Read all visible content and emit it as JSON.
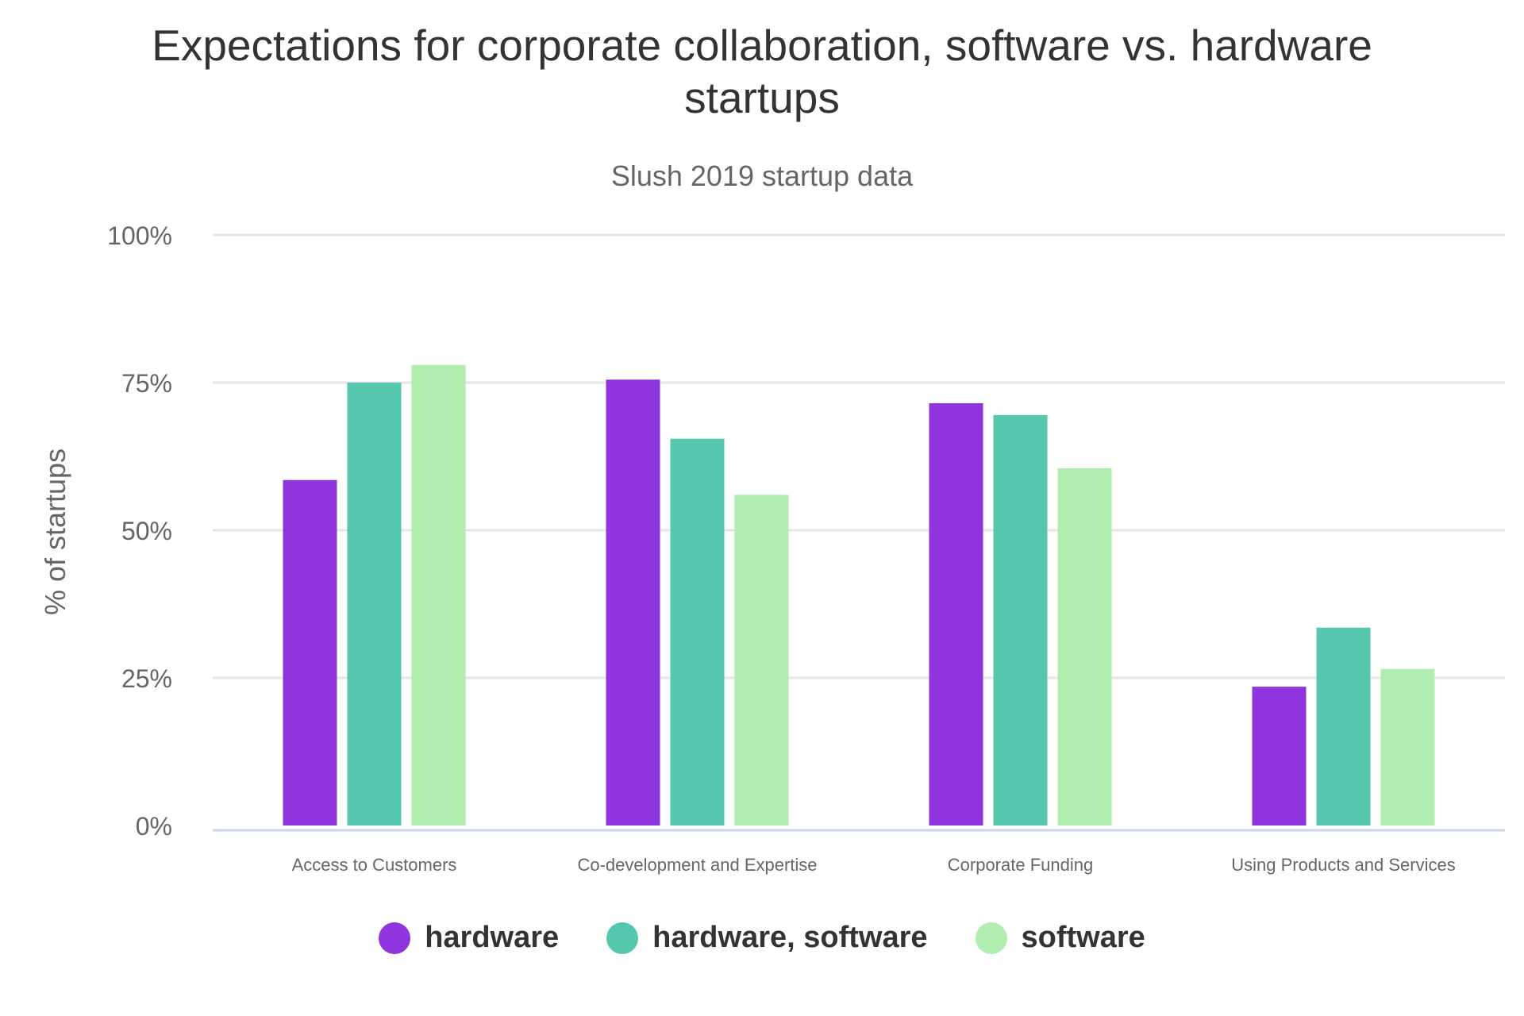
{
  "chart_data": {
    "type": "bar",
    "title": "Expectations for corporate collaboration, software vs. hardware startups",
    "subtitle": "Slush 2019 startup data",
    "ylabel": "% of startups",
    "xlabel": "",
    "ylim": [
      0,
      100
    ],
    "yticks": [
      "0%",
      "25%",
      "50%",
      "75%",
      "100%"
    ],
    "ytick_values": [
      0,
      25,
      50,
      75,
      100
    ],
    "grid": true,
    "legend_position": "bottom",
    "categories": [
      "Access to Customers",
      "Co-development and Expertise",
      "Corporate Funding",
      "Using Products and Services"
    ],
    "series": [
      {
        "name": "hardware",
        "color": "#8e35de",
        "values": [
          58.5,
          75.5,
          71.5,
          23.5
        ]
      },
      {
        "name": "hardware, software",
        "color": "#55c7ad",
        "values": [
          75,
          65.5,
          69.5,
          33.5
        ]
      },
      {
        "name": "software",
        "color": "#b1edaf",
        "values": [
          78,
          56,
          60.5,
          26.5
        ]
      }
    ]
  },
  "colors": {
    "grid": "#e6e6e6",
    "axis": "#ccd6eb",
    "text": "#333333",
    "muted": "#666666"
  }
}
